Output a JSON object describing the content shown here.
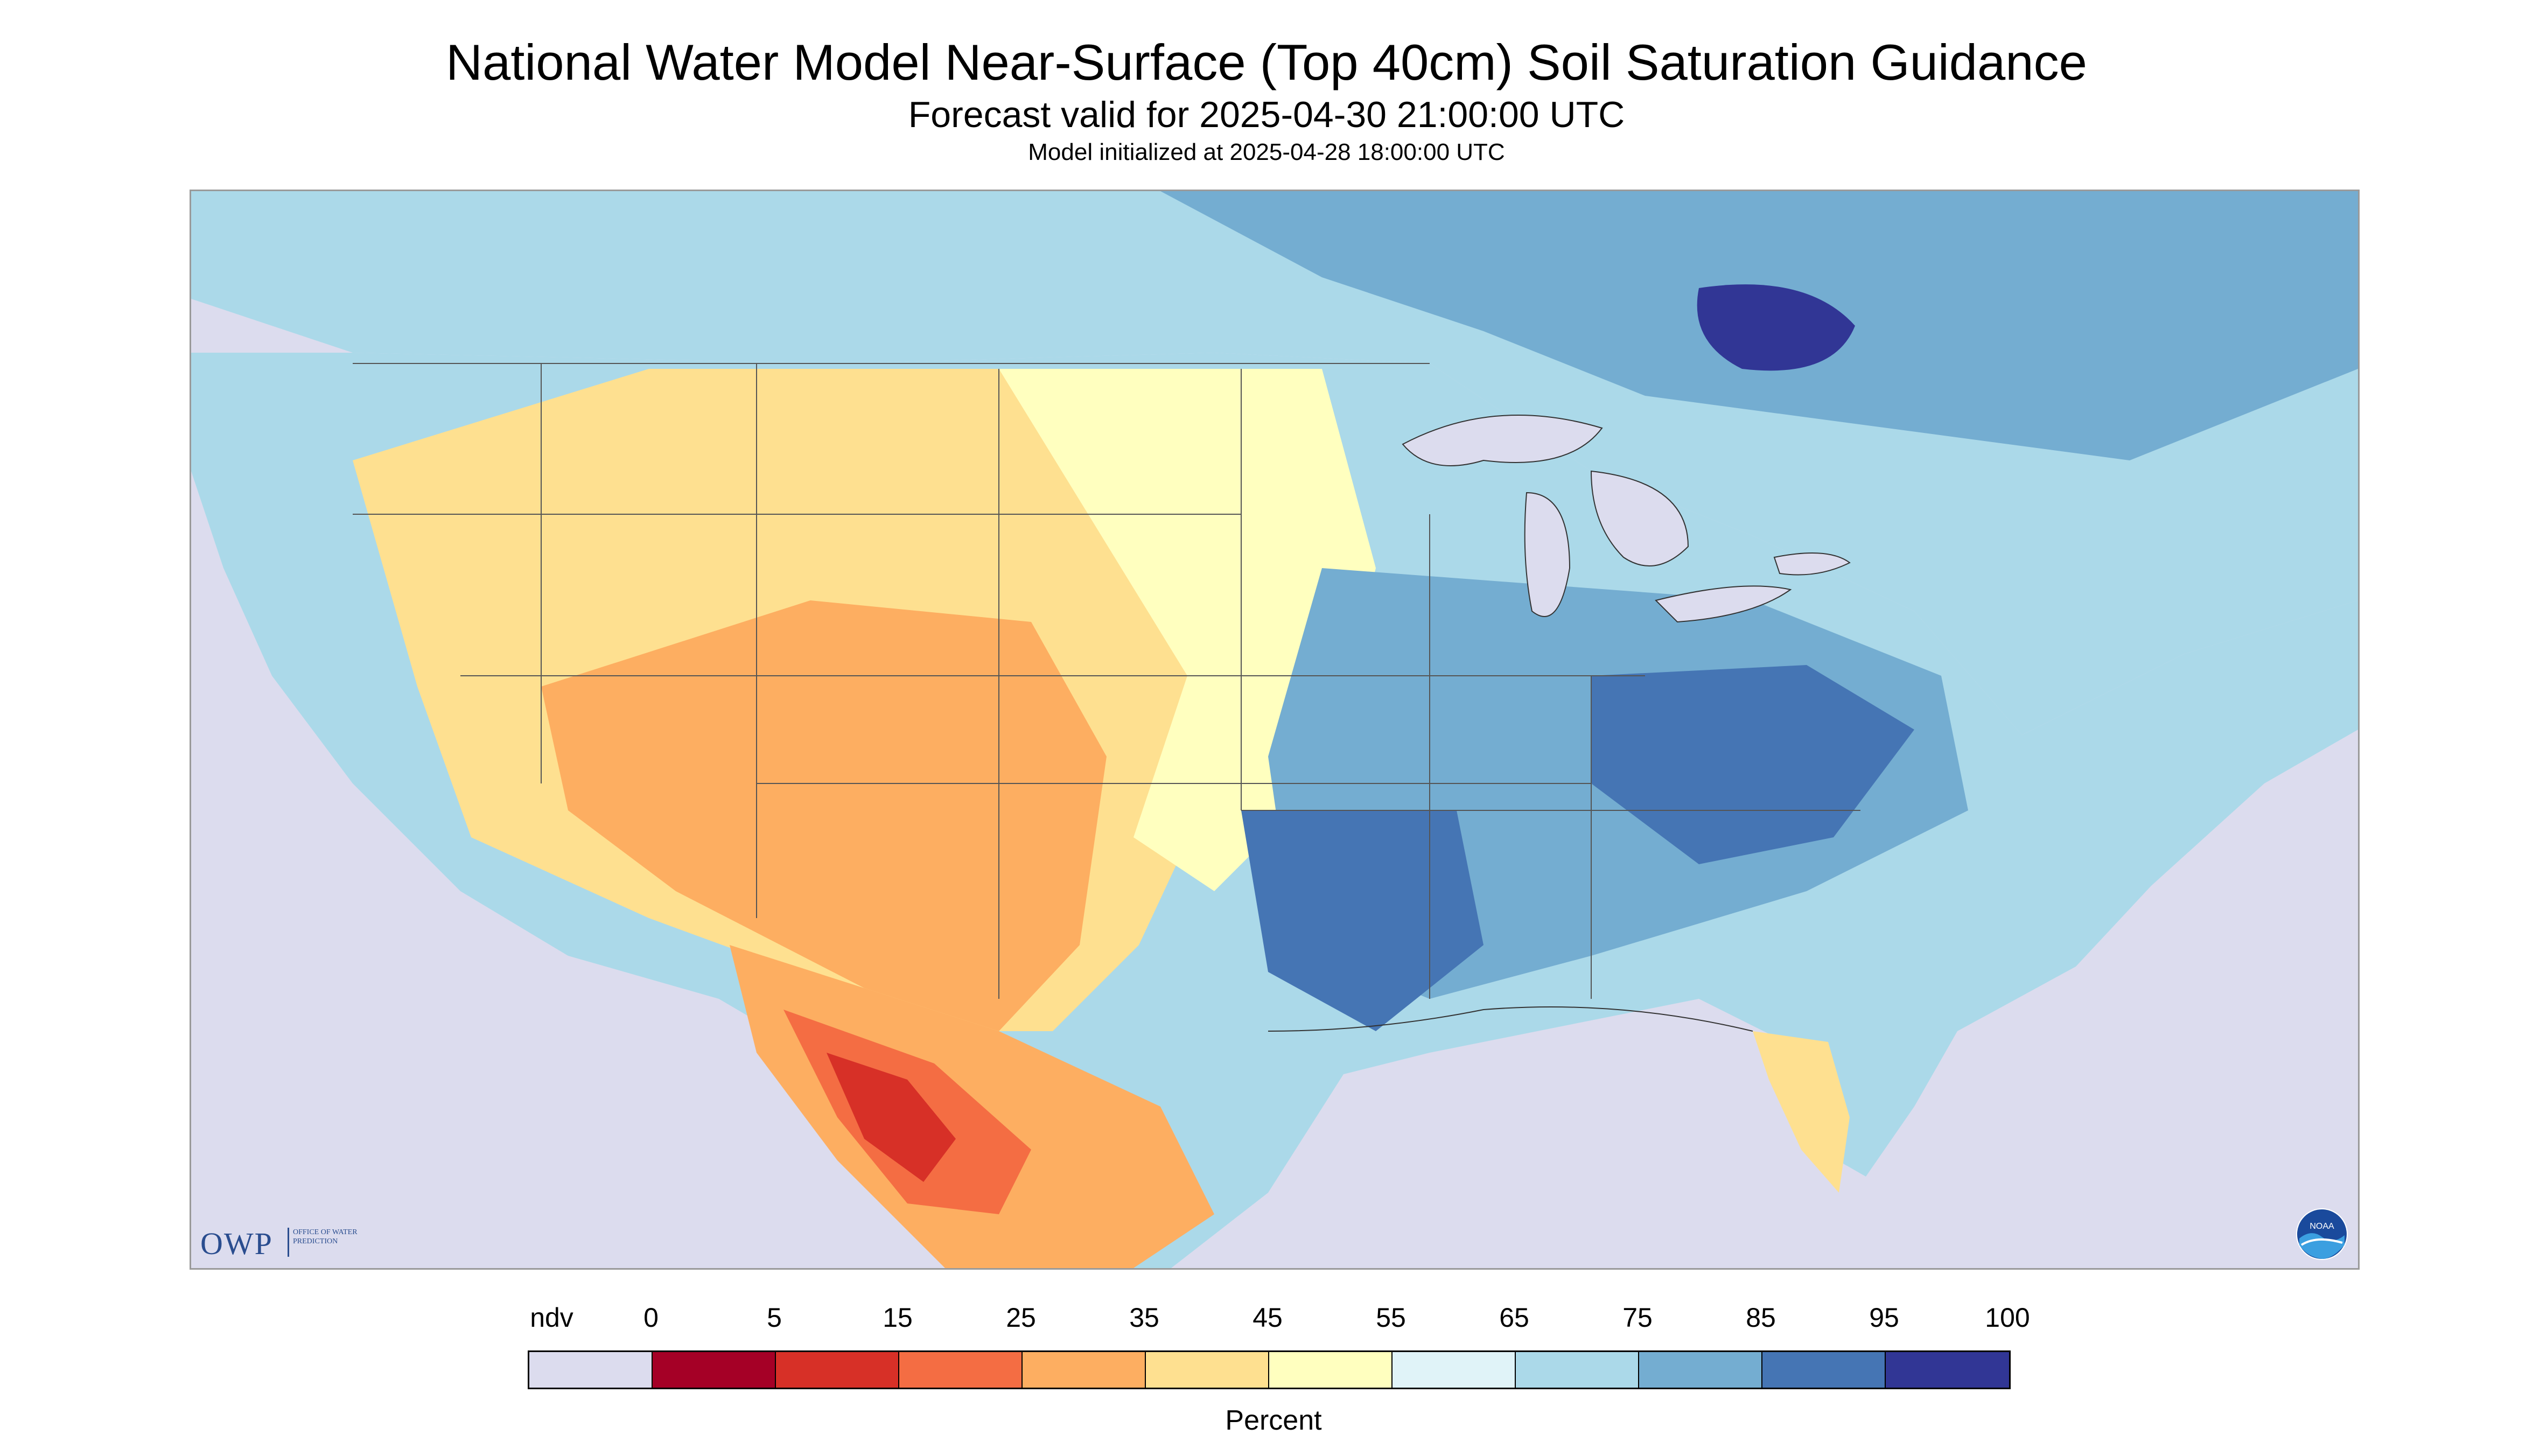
{
  "header": {
    "title": "National Water Model Near-Surface (Top 40cm) Soil Saturation Guidance",
    "valid": "Forecast valid for 2025-04-30 21:00:00 UTC",
    "init": "Model initialized at 2025-04-28 18:00:00 UTC"
  },
  "colors": {
    "ndv": "#dcdcee",
    "bin_0_5": "#a50026",
    "bin_5_15": "#d73027",
    "bin_15_25": "#f46d43",
    "bin_25_35": "#fdae61",
    "bin_35_45": "#fee090",
    "bin_45_55": "#ffffbf",
    "bin_55_65": "#e0f3f8",
    "bin_65_75": "#abd9e9",
    "bin_75_85": "#74add1",
    "bin_85_95": "#4575b4",
    "bin_95_100": "#313695",
    "state_lines": "#555555"
  },
  "legend": {
    "labels": [
      "ndv",
      "0",
      "5",
      "15",
      "25",
      "35",
      "45",
      "55",
      "65",
      "75",
      "85",
      "95",
      "100"
    ],
    "unit": "Percent"
  },
  "logos": {
    "owp_text": "OWP",
    "owp_sub": "OFFICE OF WATER PREDICTION",
    "noaa_text": "NOAA"
  }
}
